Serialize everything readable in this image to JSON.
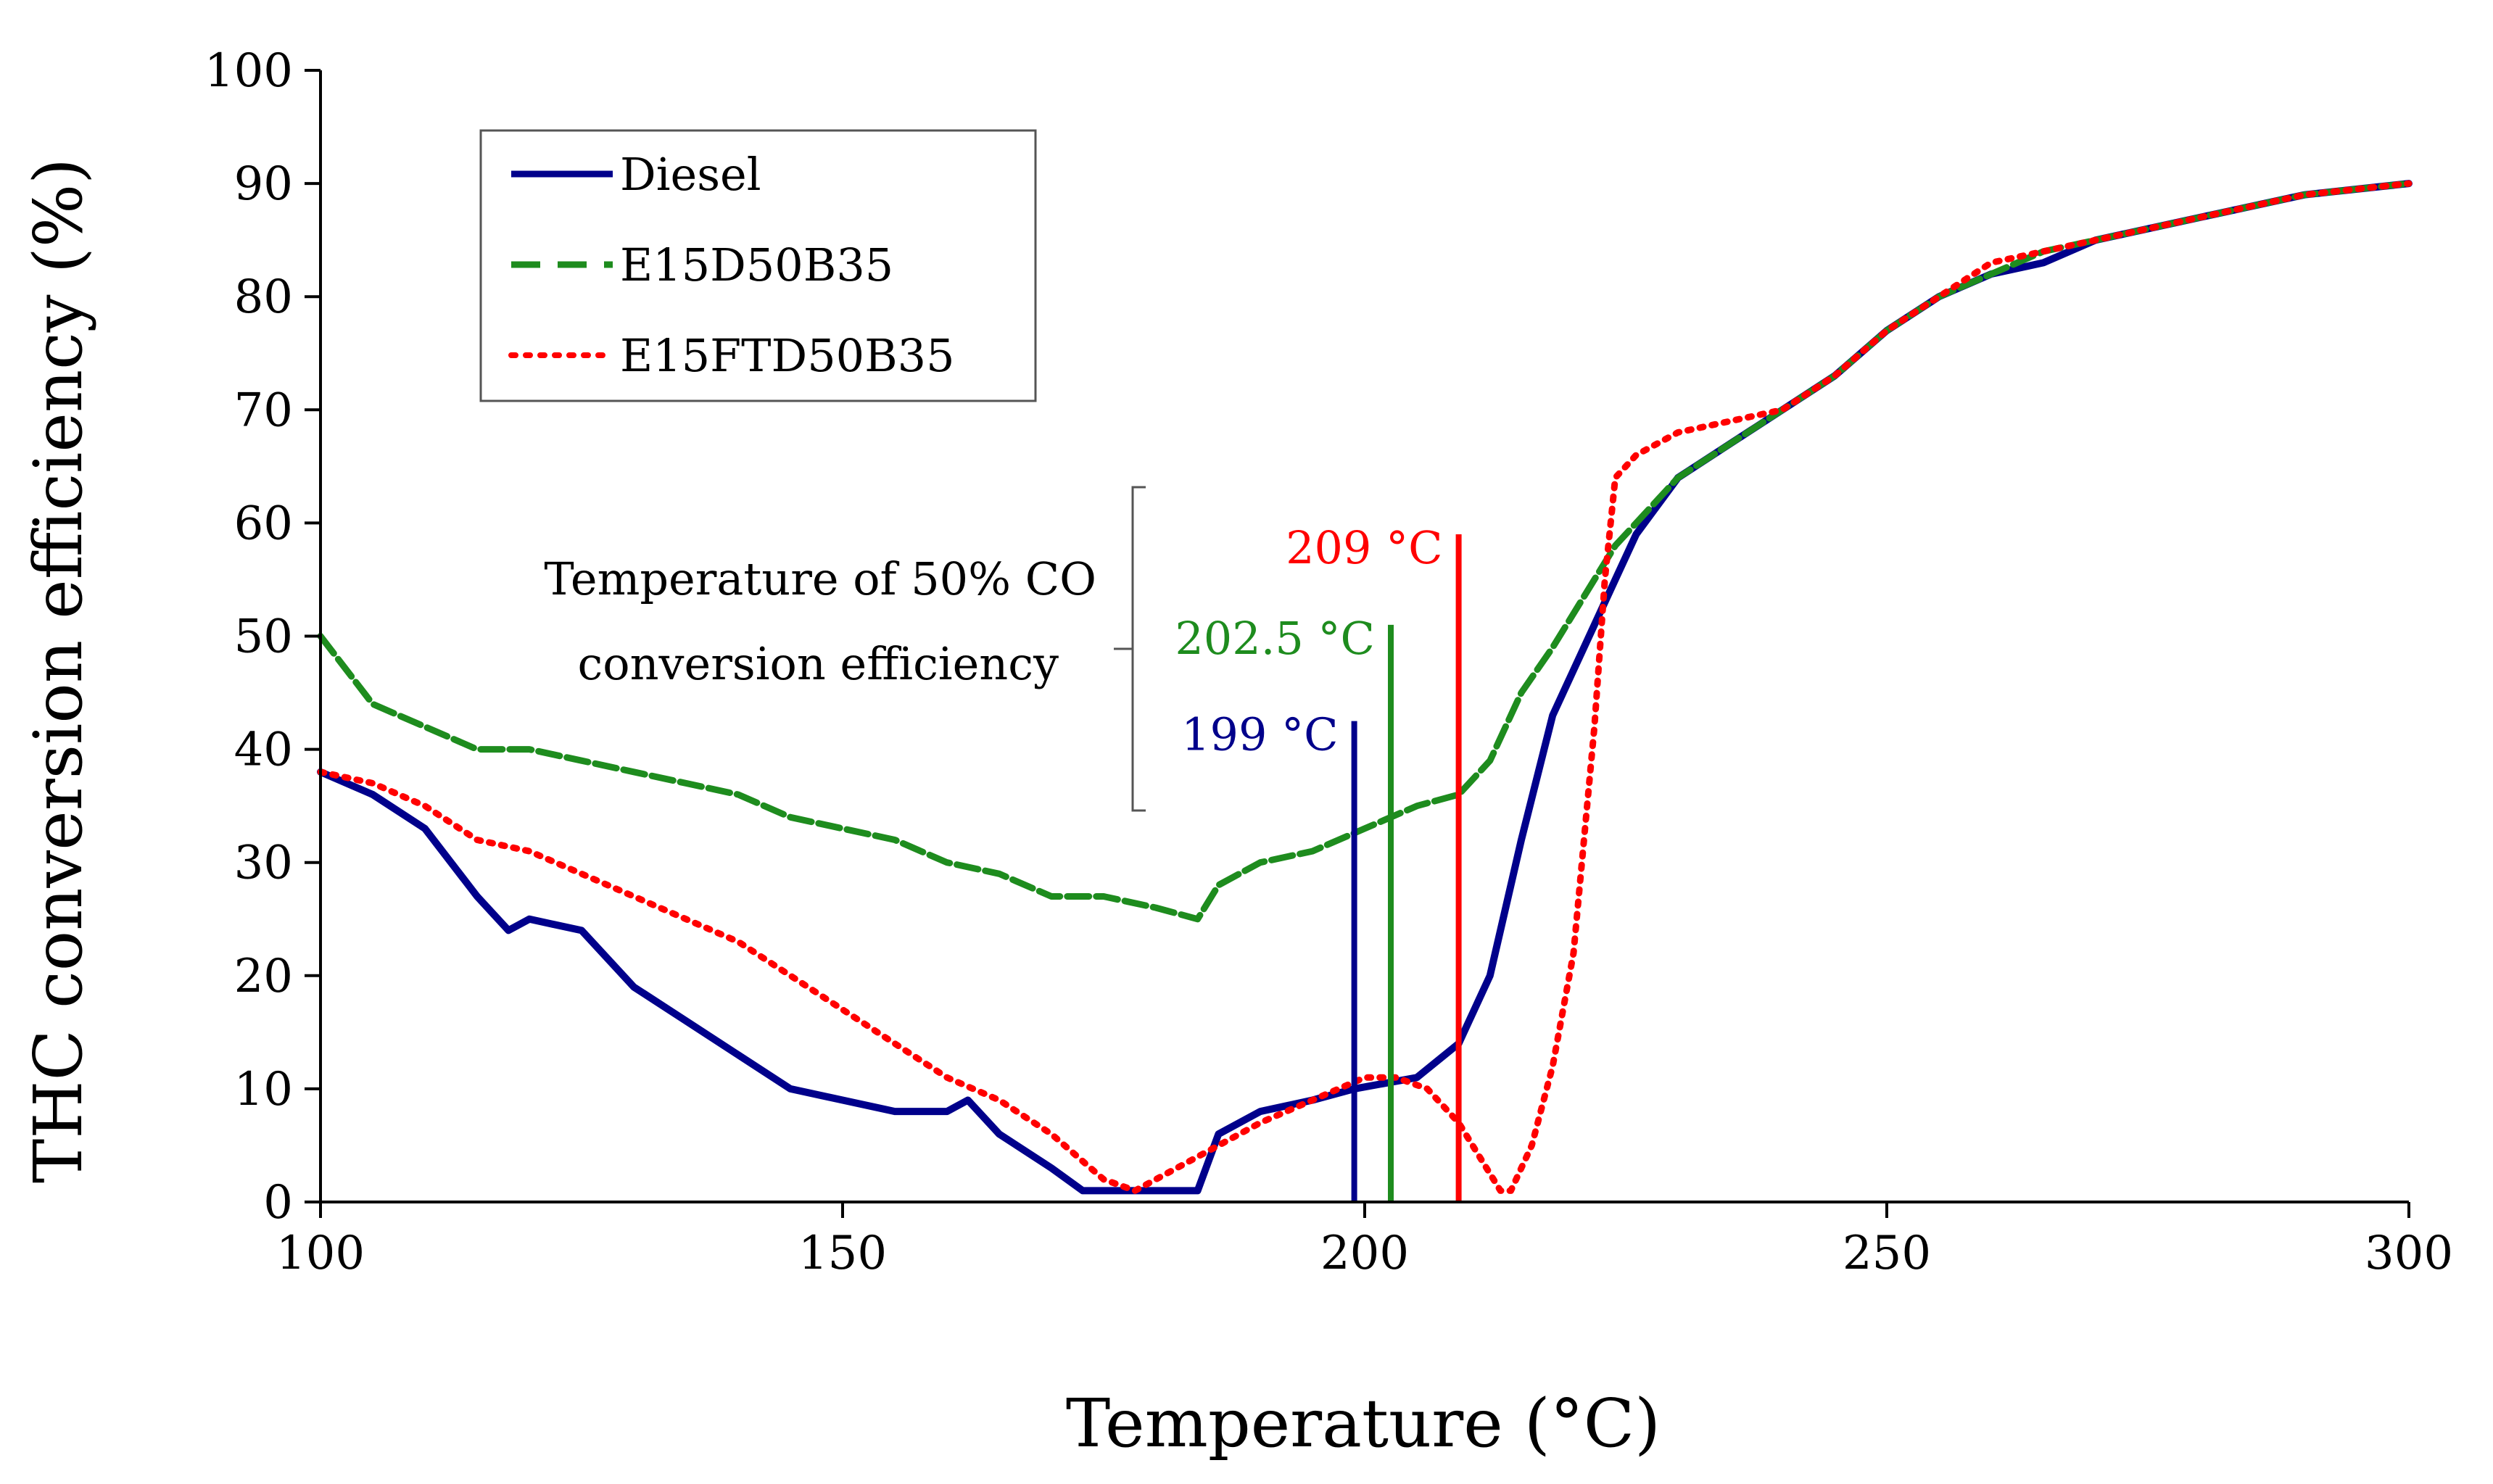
{
  "chart_data": {
    "type": "line",
    "title": "",
    "xlabel": "Temperature (°C)",
    "ylabel": "THC conversion efficiency (%)",
    "xlim": [
      100,
      300
    ],
    "ylim": [
      0,
      100
    ],
    "xticks": [
      100,
      150,
      200,
      250,
      300
    ],
    "yticks": [
      0,
      10,
      20,
      30,
      40,
      50,
      60,
      70,
      80,
      90,
      100
    ],
    "legend_position": "top-left",
    "series": [
      {
        "name": "Diesel",
        "color": "#00008b",
        "style": "solid",
        "x": [
          100,
          105,
          110,
          115,
          118,
          120,
          125,
          130,
          135,
          140,
          145,
          150,
          155,
          160,
          162,
          165,
          170,
          173,
          176,
          180,
          184,
          186,
          190,
          195,
          199,
          205,
          209,
          212,
          215,
          218,
          220,
          222,
          224,
          226,
          230,
          235,
          240,
          245,
          250,
          255,
          260,
          265,
          270,
          280,
          290,
          300
        ],
        "y": [
          38,
          36,
          33,
          27,
          24,
          25,
          24,
          19,
          16,
          13,
          10,
          9,
          8,
          8,
          9,
          6,
          3,
          1,
          1,
          1,
          1,
          6,
          8,
          9,
          10,
          11,
          14,
          20,
          32,
          43,
          47,
          51,
          55,
          59,
          64,
          67,
          70,
          73,
          77,
          80,
          82,
          83,
          85,
          87,
          89,
          90
        ]
      },
      {
        "name": "E15D50B35",
        "color": "#1e8c1e",
        "style": "dashed",
        "x": [
          100,
          105,
          110,
          115,
          120,
          125,
          130,
          135,
          140,
          145,
          150,
          155,
          160,
          165,
          170,
          175,
          180,
          184,
          186,
          190,
          195,
          200,
          205,
          209,
          212,
          215,
          218,
          220,
          222,
          224,
          226,
          230,
          235,
          240,
          245,
          250,
          255,
          260,
          265,
          270,
          280,
          290,
          300
        ],
        "y": [
          50,
          44,
          42,
          40,
          40,
          39,
          38,
          37,
          36,
          34,
          33,
          32,
          30,
          29,
          27,
          27,
          26,
          25,
          28,
          30,
          31,
          33,
          35,
          36,
          39,
          45,
          49,
          52,
          55,
          58,
          60,
          64,
          67,
          70,
          73,
          77,
          80,
          82,
          84,
          85,
          87,
          89,
          90
        ]
      },
      {
        "name": "E15FTD50B35",
        "color": "#ff0000",
        "style": "dotted",
        "x": [
          100,
          105,
          110,
          115,
          120,
          125,
          130,
          135,
          140,
          145,
          150,
          155,
          160,
          165,
          170,
          175,
          178,
          182,
          186,
          190,
          195,
          200,
          203,
          206,
          209,
          211,
          213,
          214,
          216,
          218,
          220,
          221,
          222,
          223,
          224,
          226,
          230,
          235,
          240,
          245,
          250,
          255,
          260,
          265,
          270,
          280,
          290,
          300
        ],
        "y": [
          38,
          37,
          35,
          32,
          31,
          29,
          27,
          25,
          23,
          20,
          17,
          14,
          11,
          9,
          6,
          2,
          1,
          3,
          5,
          7,
          9,
          11,
          11,
          10,
          7,
          4,
          1,
          1,
          5,
          12,
          22,
          32,
          42,
          55,
          64,
          66,
          68,
          69,
          70,
          73,
          77,
          80,
          83,
          84,
          85,
          87,
          89,
          90
        ]
      }
    ],
    "markers": [
      {
        "x": 199,
        "y_top": 42.5,
        "label": "199 °C",
        "color": "#00008b"
      },
      {
        "x": 202.5,
        "y_top": 51,
        "label": "202.5 °C",
        "color": "#1e8c1e"
      },
      {
        "x": 209,
        "y_top": 59,
        "label": "209 °C",
        "color": "#ff0000"
      }
    ],
    "annotation": {
      "line1": "Temperature of 50% CO",
      "line2": "conversion efficiency"
    }
  }
}
